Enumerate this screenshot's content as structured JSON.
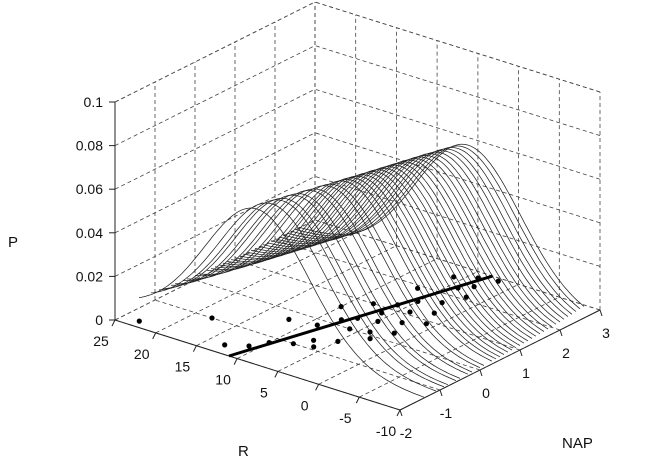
{
  "chart_data": {
    "type": "line",
    "subtype": "3d-waterfall",
    "title": "",
    "xlabel": "NAP",
    "ylabel": "R",
    "zlabel": "P",
    "xlim": [
      -2,
      3
    ],
    "ylim": [
      -10,
      25
    ],
    "zlim": [
      0,
      0.1
    ],
    "x_ticks": [
      "-2",
      "-1",
      "0",
      "1",
      "2",
      "3"
    ],
    "y_ticks": [
      "-10",
      "-5",
      "0",
      "5",
      "10",
      "15",
      "20",
      "25"
    ],
    "z_ticks": [
      "0",
      "0.02",
      "0.04",
      "0.06",
      "0.08",
      "0.1"
    ],
    "grid": true,
    "curves": {
      "description": "Normal density curves of P along R, one per observed NAP value",
      "peak": 0.0625,
      "sd": 6.4,
      "centers": [
        {
          "x": -1.4,
          "mu": 10.5
        },
        {
          "x": -1.1,
          "mu": 10.1
        },
        {
          "x": -0.9,
          "mu": 9.8
        },
        {
          "x": -0.8,
          "mu": 9.6
        },
        {
          "x": -0.6,
          "mu": 9.3
        },
        {
          "x": -0.5,
          "mu": 9.1
        },
        {
          "x": -0.3,
          "mu": 8.8
        },
        {
          "x": -0.2,
          "mu": 8.6
        },
        {
          "x": 0.0,
          "mu": 8.3
        },
        {
          "x": 0.1,
          "mu": 8.1
        },
        {
          "x": 0.3,
          "mu": 7.8
        },
        {
          "x": 0.4,
          "mu": 7.6
        },
        {
          "x": 0.5,
          "mu": 7.5
        },
        {
          "x": 0.6,
          "mu": 7.3
        },
        {
          "x": 0.7,
          "mu": 7.1
        },
        {
          "x": 0.8,
          "mu": 7.0
        },
        {
          "x": 0.9,
          "mu": 6.8
        },
        {
          "x": 1.0,
          "mu": 6.7
        },
        {
          "x": 1.1,
          "mu": 6.5
        },
        {
          "x": 1.2,
          "mu": 6.4
        },
        {
          "x": 1.3,
          "mu": 6.2
        },
        {
          "x": 1.4,
          "mu": 6.1
        },
        {
          "x": 1.5,
          "mu": 5.9
        },
        {
          "x": 1.6,
          "mu": 5.8
        },
        {
          "x": 1.7,
          "mu": 5.6
        },
        {
          "x": 1.8,
          "mu": 5.5
        },
        {
          "x": 1.9,
          "mu": 5.3
        },
        {
          "x": 2.0,
          "mu": 5.2
        },
        {
          "x": 2.1,
          "mu": 5.0
        },
        {
          "x": 2.2,
          "mu": 4.8
        },
        {
          "x": 2.3,
          "mu": 4.7
        },
        {
          "x": 2.4,
          "mu": 4.5
        },
        {
          "x": 2.5,
          "mu": 4.3
        },
        {
          "x": 2.6,
          "mu": 4.2
        }
      ]
    },
    "regression_line": {
      "x": [
        -2.0,
        3.0
      ],
      "y": [
        11.0,
        3.2
      ]
    },
    "points": [
      {
        "x": -1.8,
        "y": 23
      },
      {
        "x": -1.7,
        "y": 13
      },
      {
        "x": -1.5,
        "y": 11
      },
      {
        "x": -1.2,
        "y": 10
      },
      {
        "x": -1.0,
        "y": 18
      },
      {
        "x": -1.0,
        "y": 8
      },
      {
        "x": -0.9,
        "y": 6
      },
      {
        "x": -0.7,
        "y": 7
      },
      {
        "x": -0.5,
        "y": 5
      },
      {
        "x": -0.3,
        "y": 12
      },
      {
        "x": -0.2,
        "y": 9
      },
      {
        "x": -0.1,
        "y": 3
      },
      {
        "x": 0.0,
        "y": 6
      },
      {
        "x": 0.1,
        "y": 4
      },
      {
        "x": 0.2,
        "y": 8
      },
      {
        "x": 0.3,
        "y": 2
      },
      {
        "x": 0.4,
        "y": 7
      },
      {
        "x": 0.5,
        "y": 5
      },
      {
        "x": 0.6,
        "y": 10
      },
      {
        "x": 0.7,
        "y": 3
      },
      {
        "x": 0.8,
        "y": 6
      },
      {
        "x": 0.9,
        "y": 1
      },
      {
        "x": 1.0,
        "y": 8
      },
      {
        "x": 1.1,
        "y": 4
      },
      {
        "x": 1.2,
        "y": 6
      },
      {
        "x": 1.3,
        "y": 2
      },
      {
        "x": 1.5,
        "y": 5
      },
      {
        "x": 1.7,
        "y": 3
      },
      {
        "x": 1.9,
        "y": 7
      },
      {
        "x": 2.1,
        "y": 2
      },
      {
        "x": 2.3,
        "y": 4
      },
      {
        "x": 2.5,
        "y": 3
      },
      {
        "x": 2.6,
        "y": 6
      },
      {
        "x": 2.8,
        "y": 4
      },
      {
        "x": 2.9,
        "y": 2
      }
    ]
  }
}
